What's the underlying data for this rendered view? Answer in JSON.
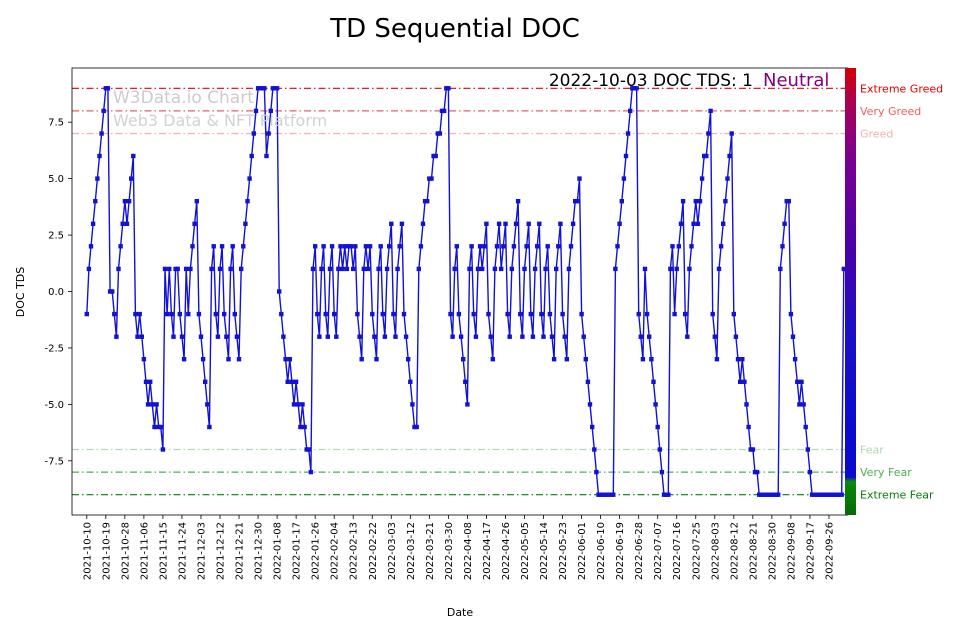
{
  "title": "TD Sequential DOC",
  "annotation": {
    "text": "2022-10-03 DOC TDS: 1",
    "sentiment": "Neutral",
    "sentiment_color": "#800080"
  },
  "watermark": {
    "line1": "W3Data.io Chart",
    "line2": "Web3 Data & NFT Platform",
    "color": "#cccccc"
  },
  "chart_data": {
    "type": "line",
    "title": "TD Sequential DOC",
    "xlabel": "Date",
    "ylabel": "DOC TDS",
    "ylim": [
      -9.9,
      9.9
    ],
    "ytick_labels": [
      "7.5",
      "5.0",
      "2.5",
      "0.0",
      "-2.5",
      "-5.0",
      "-7.5"
    ],
    "yticks": [
      7.5,
      5.0,
      2.5,
      0.0,
      -2.5,
      -5.0,
      -7.5
    ],
    "line_color": "#1212d6",
    "marker": "square",
    "x_start": "2021-10-10",
    "x_end": "2022-10-03",
    "x_interval_days": 1,
    "xtick_every_days": 9,
    "xtick_labels": [
      "2021-10-10",
      "2021-10-19",
      "2021-10-28",
      "2021-11-06",
      "2021-11-15",
      "2021-11-24",
      "2021-12-03",
      "2021-12-12",
      "2021-12-21",
      "2021-12-30",
      "2022-01-08",
      "2022-01-17",
      "2022-01-26",
      "2022-02-04",
      "2022-02-13",
      "2022-02-22",
      "2022-03-03",
      "2022-03-12",
      "2022-03-21",
      "2022-03-30",
      "2022-04-08",
      "2022-04-17",
      "2022-04-26",
      "2022-05-05",
      "2022-05-14",
      "2022-05-23",
      "2022-06-01",
      "2022-06-10",
      "2022-06-19",
      "2022-06-28",
      "2022-07-07",
      "2022-07-16",
      "2022-07-25",
      "2022-08-03",
      "2022-08-12",
      "2022-08-21",
      "2022-08-30",
      "2022-09-08",
      "2022-09-17",
      "2022-09-26"
    ],
    "thresholds": [
      {
        "value": 9,
        "label": "Extreme Greed",
        "color": "#e00000"
      },
      {
        "value": 8,
        "label": "Very Greed",
        "color": "#e86060"
      },
      {
        "value": 7,
        "label": "Greed",
        "color": "#f2b0ac"
      },
      {
        "value": -7,
        "label": "Fear",
        "color": "#b2d8b2"
      },
      {
        "value": -8,
        "label": "Very Fear",
        "color": "#4caf50"
      },
      {
        "value": -9,
        "label": "Extreme Fear",
        "color": "#0a7d0a"
      }
    ],
    "colorbar": {
      "stops": [
        {
          "offset": 0.0,
          "color": "#d40000"
        },
        {
          "offset": 0.08,
          "color": "#a80055"
        },
        {
          "offset": 0.2,
          "color": "#7a0090"
        },
        {
          "offset": 0.4,
          "color": "#4b00a8"
        },
        {
          "offset": 0.58,
          "color": "#1c10c4"
        },
        {
          "offset": 0.8,
          "color": "#0b0bd0"
        },
        {
          "offset": 0.915,
          "color": "#0b0bd0"
        },
        {
          "offset": 0.925,
          "color": "#0a8a0a"
        },
        {
          "offset": 1.0,
          "color": "#056a05"
        }
      ]
    },
    "values": [
      -1,
      1,
      2,
      3,
      4,
      5,
      6,
      7,
      8,
      9,
      9,
      0,
      0,
      -1,
      -2,
      1,
      2,
      3,
      4,
      3,
      4,
      5,
      6,
      -1,
      -2,
      -1,
      -2,
      -3,
      -4,
      -5,
      -4,
      -5,
      -6,
      -5,
      -6,
      -6,
      -7,
      1,
      -1,
      1,
      -1,
      -2,
      1,
      1,
      -1,
      -2,
      -3,
      1,
      -1,
      1,
      2,
      3,
      4,
      -1,
      -2,
      -3,
      -4,
      -5,
      -6,
      1,
      2,
      -1,
      -2,
      1,
      2,
      -1,
      -2,
      -3,
      1,
      2,
      -1,
      -2,
      -3,
      1,
      2,
      3,
      4,
      5,
      6,
      7,
      8,
      9,
      9,
      9,
      9,
      6,
      7,
      8,
      9,
      9,
      9,
      0,
      -1,
      -2,
      -3,
      -4,
      -3,
      -4,
      -5,
      -4,
      -5,
      -6,
      -5,
      -6,
      -7,
      -7,
      -8,
      1,
      2,
      -1,
      -2,
      1,
      2,
      -1,
      -2,
      1,
      2,
      -1,
      -2,
      1,
      2,
      1,
      2,
      1,
      2,
      2,
      1,
      2,
      -1,
      -2,
      -3,
      1,
      2,
      1,
      2,
      -1,
      -2,
      -3,
      1,
      2,
      -1,
      -2,
      1,
      2,
      3,
      -1,
      -2,
      1,
      2,
      3,
      -1,
      -2,
      -3,
      -4,
      -5,
      -6,
      -6,
      1,
      2,
      3,
      4,
      4,
      5,
      5,
      6,
      6,
      7,
      7,
      8,
      8,
      9,
      9,
      -1,
      -2,
      1,
      2,
      -1,
      -2,
      -3,
      -4,
      -5,
      1,
      2,
      -1,
      -2,
      1,
      2,
      1,
      2,
      3,
      -1,
      -2,
      -3,
      1,
      2,
      3,
      1,
      2,
      3,
      -1,
      -2,
      1,
      2,
      3,
      4,
      -1,
      -2,
      1,
      2,
      3,
      -1,
      -2,
      1,
      2,
      3,
      -1,
      -2,
      1,
      2,
      -1,
      -2,
      -3,
      1,
      2,
      3,
      -1,
      -2,
      -3,
      1,
      2,
      3,
      4,
      4,
      5,
      -1,
      -2,
      -3,
      -4,
      -5,
      -6,
      -7,
      -8,
      -9,
      -9,
      -9,
      -9,
      -9,
      -9,
      -9,
      -9,
      1,
      2,
      3,
      4,
      5,
      6,
      7,
      8,
      9,
      9,
      9,
      -1,
      -2,
      -3,
      1,
      -1,
      -2,
      -3,
      -4,
      -5,
      -6,
      -7,
      -8,
      -9,
      -9,
      -9,
      1,
      2,
      -1,
      1,
      2,
      3,
      4,
      -1,
      -2,
      1,
      2,
      3,
      4,
      3,
      4,
      5,
      6,
      6,
      7,
      8,
      -1,
      -2,
      -3,
      1,
      2,
      3,
      4,
      5,
      6,
      7,
      -1,
      -2,
      -3,
      -4,
      -3,
      -4,
      -5,
      -6,
      -7,
      -7,
      -8,
      -8,
      -9,
      -9,
      -9,
      -9,
      -9,
      -9,
      -9,
      -9,
      -9,
      -9,
      1,
      2,
      3,
      4,
      4,
      -1,
      -2,
      -3,
      -4,
      -5,
      -4,
      -5,
      -6,
      -7,
      -8,
      -9,
      -9,
      -9,
      -9,
      -9,
      -9,
      -9,
      -9,
      -9,
      -9,
      -9,
      -9,
      -9,
      -9,
      -9,
      1
    ]
  }
}
